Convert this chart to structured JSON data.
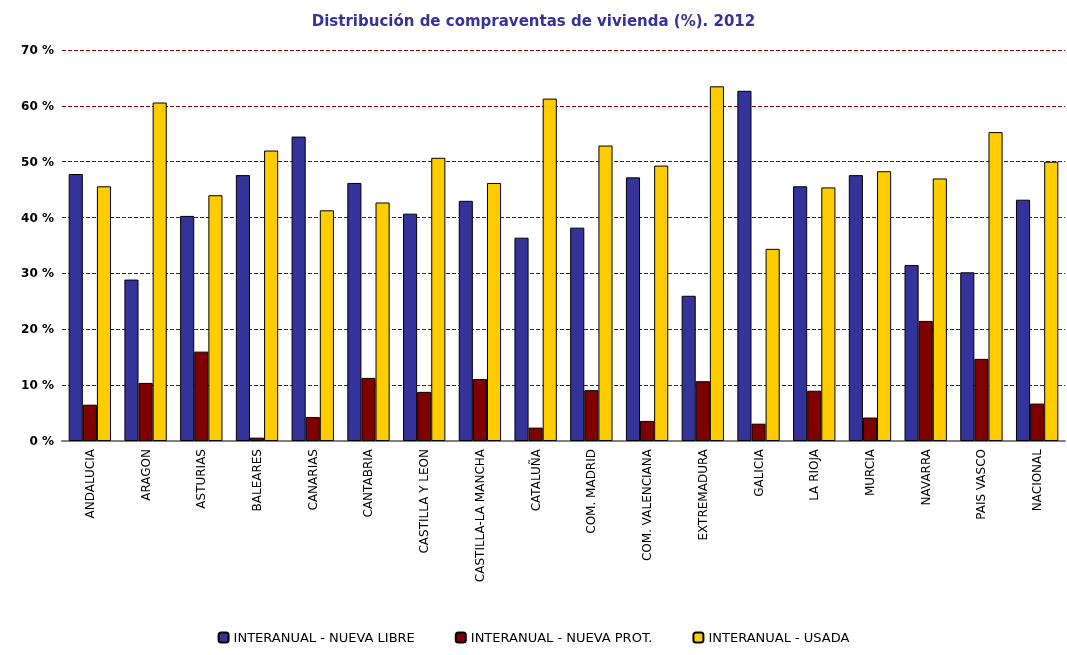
{
  "chart_data": {
    "type": "bar",
    "title": "Distribución de compraventas de vivienda (%). 2012",
    "categories": [
      "ANDALUCIA",
      "ARAGON",
      "ASTURIAS",
      "BALEARES",
      "CANARIAS",
      "CANTABRIA",
      "CASTILLA Y LEON",
      "CASTILLA-LA MANCHA",
      "CATALUÑA",
      "COM. MADRID",
      "COM. VALENCIANA",
      "EXTREMADURA",
      "GALICIA",
      "LA RIOJA",
      "MURCIA",
      "NAVARRA",
      "PAIS VASCO",
      "NACIONAL"
    ],
    "series": [
      {
        "name": "INTERANUAL - NUEVA LIBRE",
        "color": "#333399",
        "values": [
          47.8,
          28.9,
          40.3,
          47.6,
          54.5,
          46.2,
          40.7,
          43.0,
          36.4,
          38.2,
          47.2,
          26.0,
          62.7,
          45.6,
          47.6,
          31.5,
          30.2,
          43.2
        ]
      },
      {
        "name": "INTERANUAL - NUEVA PROT.",
        "color": "#800000",
        "values": [
          6.5,
          10.4,
          16.0,
          0.6,
          4.3,
          11.3,
          8.8,
          11.1,
          2.4,
          9.1,
          3.6,
          10.7,
          3.1,
          9.0,
          4.2,
          21.5,
          14.7,
          6.7
        ]
      },
      {
        "name": "INTERANUAL - USADA",
        "color": "#ffcc00",
        "values": [
          45.6,
          60.6,
          44.0,
          52.0,
          41.3,
          42.7,
          50.7,
          46.2,
          61.3,
          52.9,
          49.3,
          63.5,
          34.4,
          45.4,
          48.3,
          47.0,
          55.3,
          50.0
        ]
      }
    ],
    "ylim": [
      0,
      70
    ],
    "yticks": [
      {
        "value": 0,
        "label": "0 %"
      },
      {
        "value": 10,
        "label": "10 %"
      },
      {
        "value": 20,
        "label": "20 %"
      },
      {
        "value": 30,
        "label": "30 %"
      },
      {
        "value": 40,
        "label": "40 %"
      },
      {
        "value": 50,
        "label": "50 %"
      },
      {
        "value": 60,
        "label": "60 %"
      },
      {
        "value": 70,
        "label": "70 %"
      }
    ],
    "grid": "y",
    "legend": "bottom"
  }
}
